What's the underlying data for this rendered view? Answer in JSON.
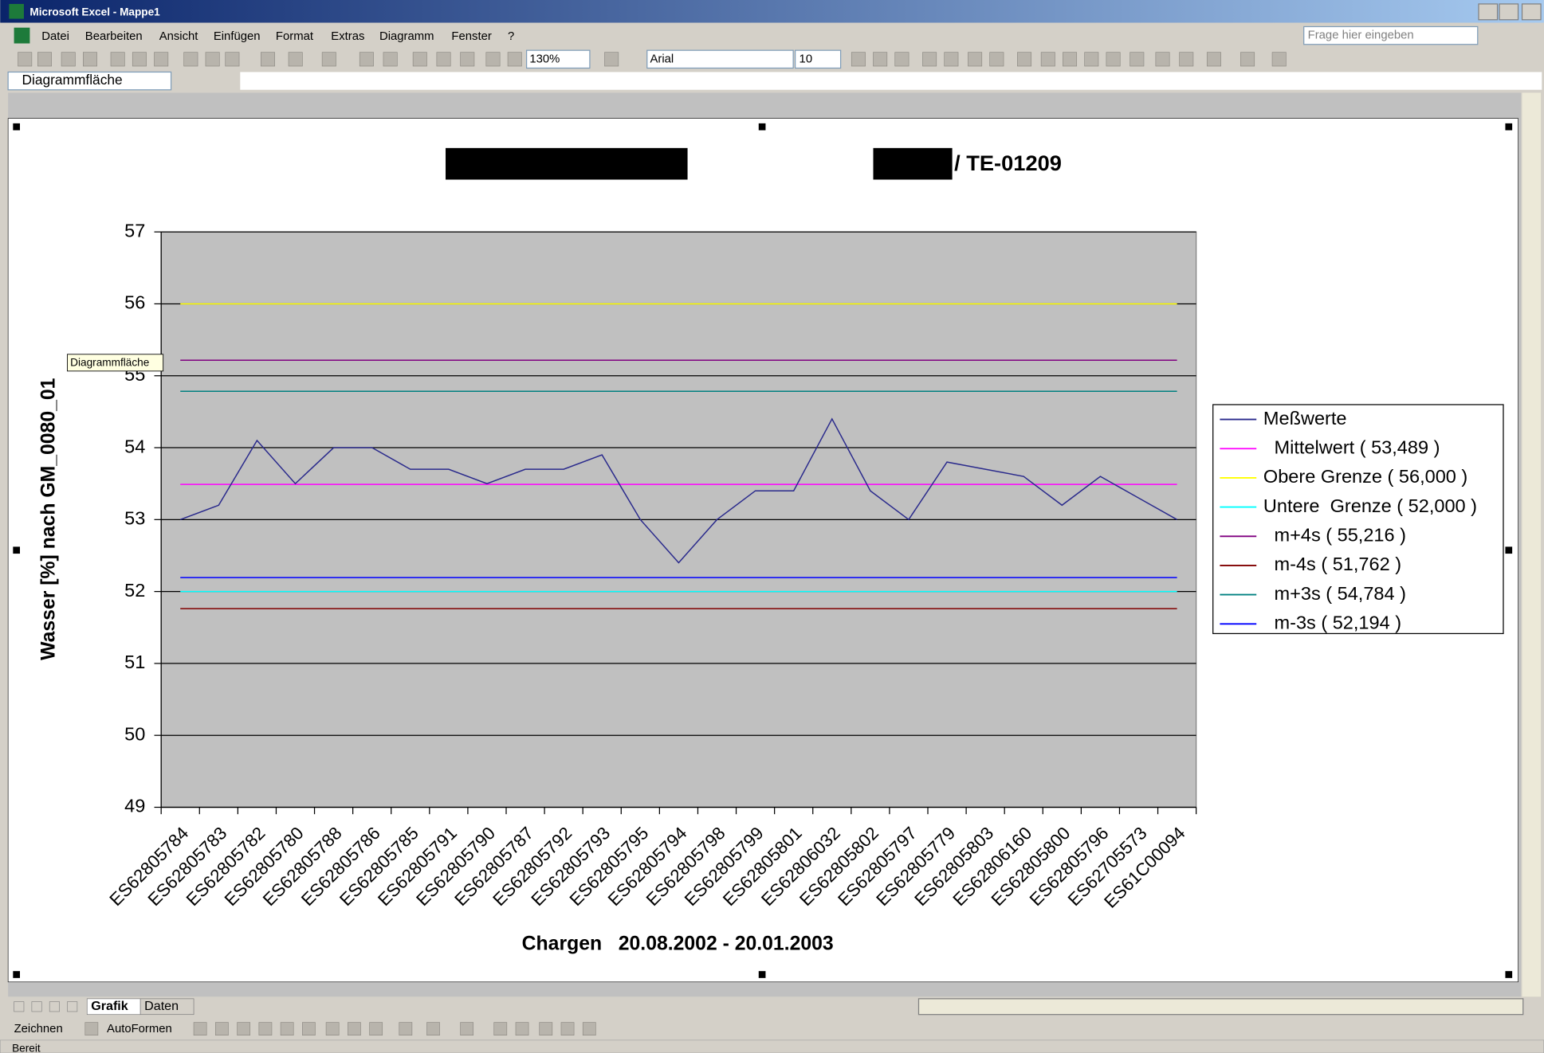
{
  "ui": {
    "window_title": "Microsoft Excel - Mappe1",
    "menus": [
      "Datei",
      "Bearbeiten",
      "Ansicht",
      "Einfügen",
      "Format",
      "Extras",
      "Diagramm",
      "Fenster",
      "?"
    ],
    "help_box": "Frage hier eingeben",
    "zoom": "130%",
    "font": "Arial",
    "font_size": "10",
    "name_box": "Diagrammfläche",
    "tooltip": "Diagrammfläche",
    "sheet_tabs": [
      "Grafik",
      "Daten"
    ],
    "drawing_toolbar": [
      "Zeichnen",
      "AutoFormen"
    ],
    "status": "Bereit"
  },
  "chart_data": {
    "type": "line",
    "title": "/ TE-01209",
    "y_label": "Wasser [%] nach GM_0080_01",
    "x_label": "Chargen   20.08.2002 - 20.01.2003",
    "categories": [
      "ES62805784",
      "ES62805783",
      "ES62805782",
      "ES62805780",
      "ES62805788",
      "ES62805786",
      "ES62805785",
      "ES62805791",
      "ES62805790",
      "ES62805787",
      "ES62805792",
      "ES62805793",
      "ES62805795",
      "ES62805794",
      "ES62805798",
      "ES62805799",
      "ES62805801",
      "ES62806032",
      "ES62805802",
      "ES62805797",
      "ES62805779",
      "ES62805803",
      "ES62806160",
      "ES62805800",
      "ES62805796",
      "ES62705573",
      "ES61C00094"
    ],
    "series": [
      {
        "name": "Meßwerte",
        "color": "#2a2a8c",
        "values": [
          53.0,
          53.2,
          54.1,
          53.5,
          54.0,
          54.0,
          53.7,
          53.7,
          53.5,
          53.7,
          53.7,
          53.9,
          53.0,
          52.4,
          53.0,
          53.4,
          53.4,
          54.4,
          53.4,
          53.0,
          53.8,
          53.7,
          53.6,
          53.2,
          53.6,
          53.3,
          53.0
        ]
      },
      {
        "name": "Mittelwert ( 53,489 )",
        "color": "#ff00ff",
        "values": [
          53.489,
          53.489,
          53.489,
          53.489,
          53.489,
          53.489,
          53.489,
          53.489,
          53.489,
          53.489,
          53.489,
          53.489,
          53.489,
          53.489,
          53.489,
          53.489,
          53.489,
          53.489,
          53.489,
          53.489,
          53.489,
          53.489,
          53.489,
          53.489,
          53.489,
          53.489,
          53.489
        ]
      },
      {
        "name": "Obere Grenze ( 56,000 )",
        "color": "#ffff00",
        "values": [
          56,
          56,
          56,
          56,
          56,
          56,
          56,
          56,
          56,
          56,
          56,
          56,
          56,
          56,
          56,
          56,
          56,
          56,
          56,
          56,
          56,
          56,
          56,
          56,
          56,
          56,
          56
        ]
      },
      {
        "name": "Untere  Grenze ( 52,000 )",
        "color": "#00ffff",
        "values": [
          52,
          52,
          52,
          52,
          52,
          52,
          52,
          52,
          52,
          52,
          52,
          52,
          52,
          52,
          52,
          52,
          52,
          52,
          52,
          52,
          52,
          52,
          52,
          52,
          52,
          52,
          52
        ]
      },
      {
        "name": "m+4s ( 55,216 )",
        "color": "#800080",
        "values": [
          55.216,
          55.216,
          55.216,
          55.216,
          55.216,
          55.216,
          55.216,
          55.216,
          55.216,
          55.216,
          55.216,
          55.216,
          55.216,
          55.216,
          55.216,
          55.216,
          55.216,
          55.216,
          55.216,
          55.216,
          55.216,
          55.216,
          55.216,
          55.216,
          55.216,
          55.216,
          55.216
        ]
      },
      {
        "name": "m-4s ( 51,762 )",
        "color": "#800000",
        "values": [
          51.762,
          51.762,
          51.762,
          51.762,
          51.762,
          51.762,
          51.762,
          51.762,
          51.762,
          51.762,
          51.762,
          51.762,
          51.762,
          51.762,
          51.762,
          51.762,
          51.762,
          51.762,
          51.762,
          51.762,
          51.762,
          51.762,
          51.762,
          51.762,
          51.762,
          51.762,
          51.762
        ]
      },
      {
        "name": "m+3s ( 54,784 )",
        "color": "#008080",
        "values": [
          54.784,
          54.784,
          54.784,
          54.784,
          54.784,
          54.784,
          54.784,
          54.784,
          54.784,
          54.784,
          54.784,
          54.784,
          54.784,
          54.784,
          54.784,
          54.784,
          54.784,
          54.784,
          54.784,
          54.784,
          54.784,
          54.784,
          54.784,
          54.784,
          54.784,
          54.784,
          54.784
        ]
      },
      {
        "name": "m-3s ( 52,194 )",
        "color": "#0000ff",
        "values": [
          52.194,
          52.194,
          52.194,
          52.194,
          52.194,
          52.194,
          52.194,
          52.194,
          52.194,
          52.194,
          52.194,
          52.194,
          52.194,
          52.194,
          52.194,
          52.194,
          52.194,
          52.194,
          52.194,
          52.194,
          52.194,
          52.194,
          52.194,
          52.194,
          52.194,
          52.194,
          52.194
        ]
      }
    ],
    "ylim": [
      49,
      57
    ],
    "yticks": [
      49,
      50,
      51,
      52,
      53,
      54,
      55,
      56,
      57
    ],
    "grid": true,
    "legend": "right"
  }
}
